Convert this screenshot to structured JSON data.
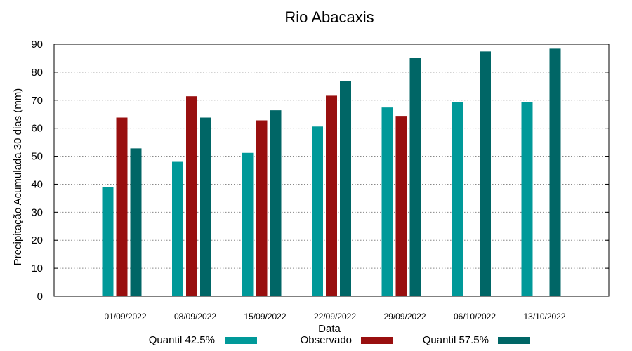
{
  "chart_data": {
    "type": "bar",
    "title": "Rio Abacaxis",
    "xlabel": "Data",
    "ylabel": "Precipitação Acumulada 30 dias (mm)",
    "ylim": [
      0,
      90
    ],
    "yticks": [
      0,
      10,
      20,
      30,
      40,
      50,
      60,
      70,
      80,
      90
    ],
    "categories": [
      "01/09/2022",
      "08/09/2022",
      "15/09/2022",
      "22/09/2022",
      "29/09/2022",
      "06/10/2022",
      "13/10/2022"
    ],
    "grid": true,
    "legend_position": "bottom",
    "series": [
      {
        "name": "Quantil 42.5%",
        "color": "#009999",
        "values": [
          39,
          48,
          51.2,
          60.6,
          67.4,
          69.4,
          69.4
        ]
      },
      {
        "name": "Observado",
        "color": "#990f0f",
        "values": [
          63.8,
          71.4,
          62.8,
          71.6,
          64.4,
          null,
          null
        ]
      },
      {
        "name": "Quantil 57.5%",
        "color": "#006666",
        "values": [
          52.8,
          63.8,
          66.4,
          76.8,
          85.2,
          87.4,
          88.4
        ]
      }
    ]
  }
}
